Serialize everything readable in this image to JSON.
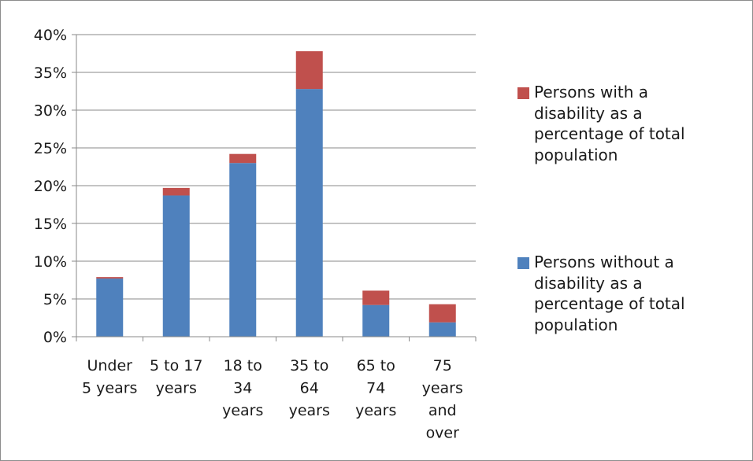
{
  "chart_data": {
    "type": "bar",
    "stacked": true,
    "title": "",
    "xlabel": "",
    "ylabel": "",
    "ylim": [
      0,
      40
    ],
    "y_ticks": [
      "0%",
      "5%",
      "10%",
      "15%",
      "20%",
      "25%",
      "30%",
      "35%",
      "40%"
    ],
    "grid": true,
    "legend_position": "right",
    "categories": [
      [
        "Under",
        "5 years"
      ],
      [
        "5 to 17",
        "years"
      ],
      [
        "18 to",
        "34",
        "years"
      ],
      [
        "35 to",
        "64",
        "years"
      ],
      [
        "65 to",
        "74",
        "years"
      ],
      [
        "75",
        "years",
        "and",
        "over"
      ]
    ],
    "series": [
      {
        "name": "Persons without a disability as a percentage of total population",
        "legend_lines": [
          "Persons without a",
          "disability as a",
          "percentage of total",
          "population"
        ],
        "color": "#4f81bd",
        "values": [
          7.7,
          18.7,
          23.0,
          32.8,
          4.2,
          1.9
        ]
      },
      {
        "name": "Persons with a disability as a percentage of total population",
        "legend_lines": [
          "Persons with a",
          "disability as a",
          "percentage of total",
          "population"
        ],
        "color": "#c0504d",
        "values": [
          0.2,
          1.0,
          1.2,
          5.0,
          1.9,
          2.4
        ]
      }
    ]
  }
}
